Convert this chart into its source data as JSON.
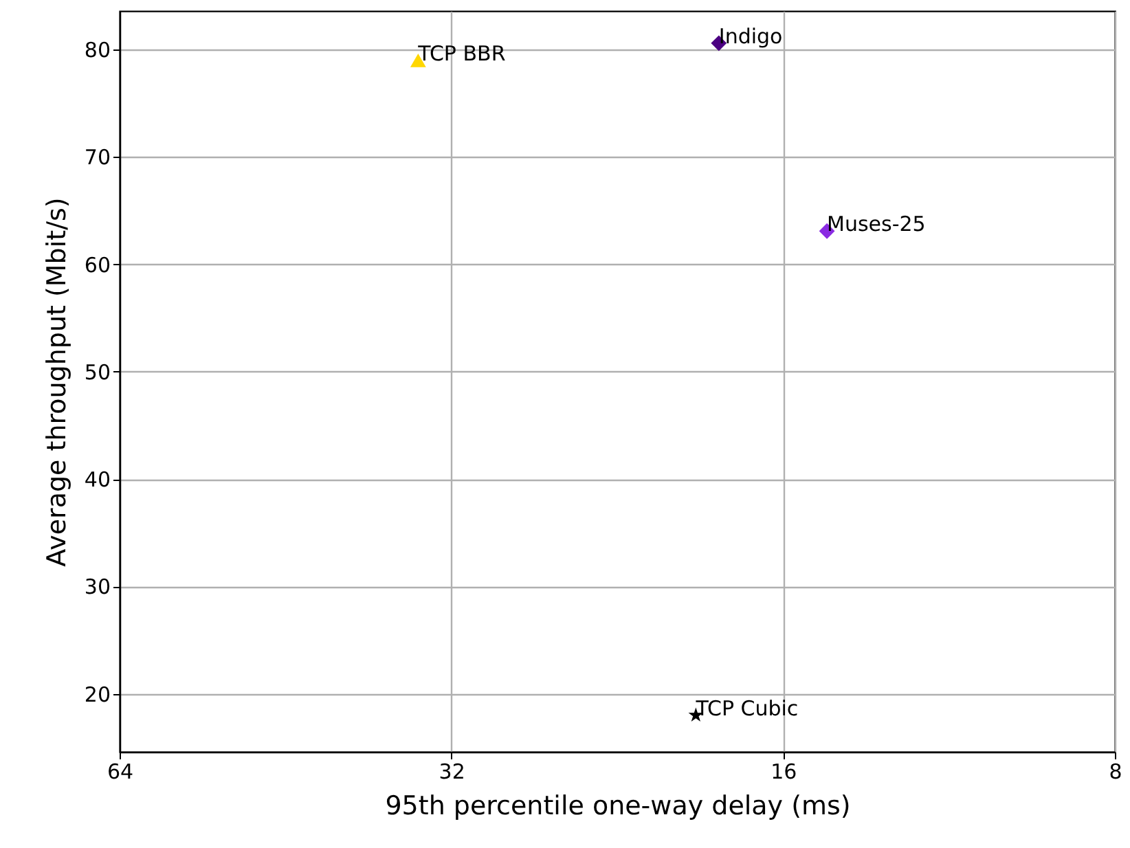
{
  "chart_data": {
    "type": "scatter",
    "xlabel": "95th percentile one-way delay (ms)",
    "ylabel": "Average throughput (Mbit/s)",
    "log": "x",
    "xlim": [
      64,
      8
    ],
    "xticks": [
      64,
      32,
      16,
      8
    ],
    "ylim": [
      14.6,
      83.6
    ],
    "yticks": [
      20,
      30,
      40,
      50,
      60,
      70,
      80
    ],
    "grid": true,
    "series": [
      {
        "name": "TCP BBR",
        "color": "#ffd700",
        "marker": "triangle",
        "x": [
          34.3
        ],
        "values": [
          79.0
        ]
      },
      {
        "name": "Indigo",
        "color": "#4b0082",
        "marker": "diamond",
        "x": [
          18.3
        ],
        "values": [
          80.6
        ]
      },
      {
        "name": "Muses-25",
        "color": "#8a2be2",
        "marker": "diamond",
        "x": [
          14.6
        ],
        "values": [
          63.1
        ]
      },
      {
        "name": "TCP Cubic",
        "color": "#000000",
        "marker": "star",
        "x": [
          19.2
        ],
        "values": [
          18.0
        ]
      }
    ]
  }
}
